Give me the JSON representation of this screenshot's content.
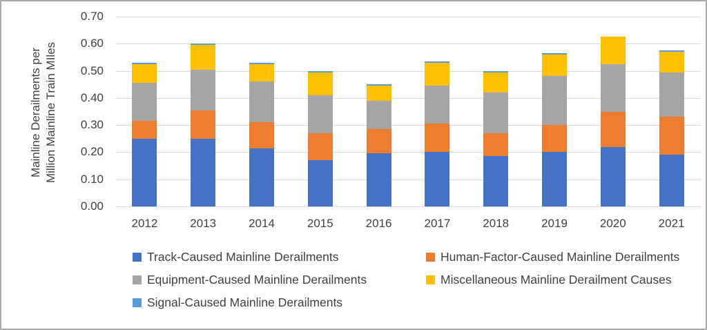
{
  "figure": {
    "background": "#ffffff",
    "border_color": "#a9a9a9",
    "text_color": "#404040",
    "gridline_color": "#d9d9d9"
  },
  "chart_data": {
    "type": "bar",
    "stacked": true,
    "title": "",
    "ylabel": "Mainline Derailments per Million Mainline Train MIles",
    "ylabel_lines": [
      "Mainline Derailments per",
      "Million Mainline Train MIles"
    ],
    "xlabel": "",
    "categories": [
      "2012",
      "2013",
      "2014",
      "2015",
      "2016",
      "2017",
      "2018",
      "2019",
      "2020",
      "2021"
    ],
    "series": [
      {
        "name": "Track-Caused Mainline Derailments",
        "color": "#4472C4",
        "values": [
          0.25,
          0.25,
          0.215,
          0.17,
          0.195,
          0.2,
          0.185,
          0.2,
          0.22,
          0.19
        ]
      },
      {
        "name": "Human-Factor-Caused Mainline Derailments",
        "color": "#ED7D31",
        "values": [
          0.065,
          0.105,
          0.095,
          0.1,
          0.09,
          0.105,
          0.085,
          0.1,
          0.13,
          0.14
        ]
      },
      {
        "name": "Equipment-Caused Mainline Derailments",
        "color": "#A5A5A5",
        "values": [
          0.14,
          0.15,
          0.15,
          0.14,
          0.105,
          0.14,
          0.15,
          0.18,
          0.175,
          0.165
        ]
      },
      {
        "name": "Miscellaneous Mainline Derailment Causes",
        "color": "#FFC000",
        "values": [
          0.07,
          0.09,
          0.065,
          0.085,
          0.055,
          0.085,
          0.075,
          0.08,
          0.1,
          0.075
        ]
      },
      {
        "name": "Signal-Caused Mainline Derailments",
        "color": "#5B9BD5",
        "values": [
          0.005,
          0.005,
          0.005,
          0.005,
          0.005,
          0.005,
          0.005,
          0.005,
          0,
          0.005
        ]
      }
    ],
    "totals": [
      0.53,
      0.6,
      0.53,
      0.5,
      0.45,
      0.535,
      0.5,
      0.565,
      0.625,
      0.575
    ],
    "ylim": [
      0,
      0.7
    ],
    "ytick_step": 0.1,
    "ytick_labels": [
      "0.00",
      "0.10",
      "0.20",
      "0.30",
      "0.40",
      "0.50",
      "0.60",
      "0.70"
    ],
    "grid": true,
    "legend_position": "bottom"
  }
}
